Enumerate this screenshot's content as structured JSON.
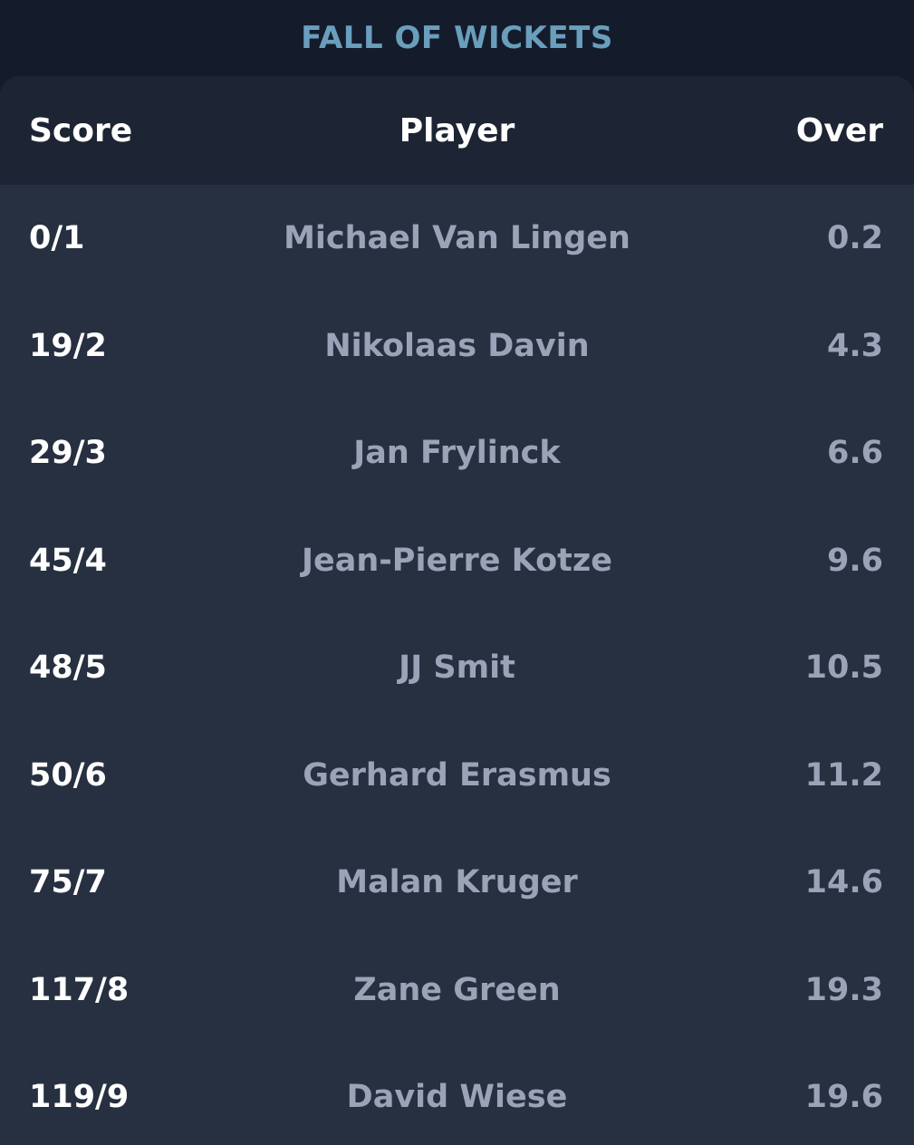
{
  "title": "FALL OF WICKETS",
  "columns": {
    "score": "Score",
    "player": "Player",
    "over": "Over"
  },
  "rows": [
    {
      "score": "0/1",
      "player": "Michael Van Lingen",
      "over": "0.2"
    },
    {
      "score": "19/2",
      "player": "Nikolaas Davin",
      "over": "4.3"
    },
    {
      "score": "29/3",
      "player": "Jan Frylinck",
      "over": "6.6"
    },
    {
      "score": "45/4",
      "player": "Jean-Pierre Kotze",
      "over": "9.6"
    },
    {
      "score": "48/5",
      "player": "JJ Smit",
      "over": "10.5"
    },
    {
      "score": "50/6",
      "player": "Gerhard Erasmus",
      "over": "11.2"
    },
    {
      "score": "75/7",
      "player": "Malan Kruger",
      "over": "14.6"
    },
    {
      "score": "117/8",
      "player": "Zane Green",
      "over": "19.3"
    },
    {
      "score": "119/9",
      "player": "David Wiese",
      "over": "19.6"
    }
  ],
  "colors": {
    "background": "#141c2b",
    "card": "#273040",
    "header": "#1d2534",
    "title": "#6a9ebd",
    "score_text": "#ffffff",
    "muted_text": "#9aa4b8"
  }
}
